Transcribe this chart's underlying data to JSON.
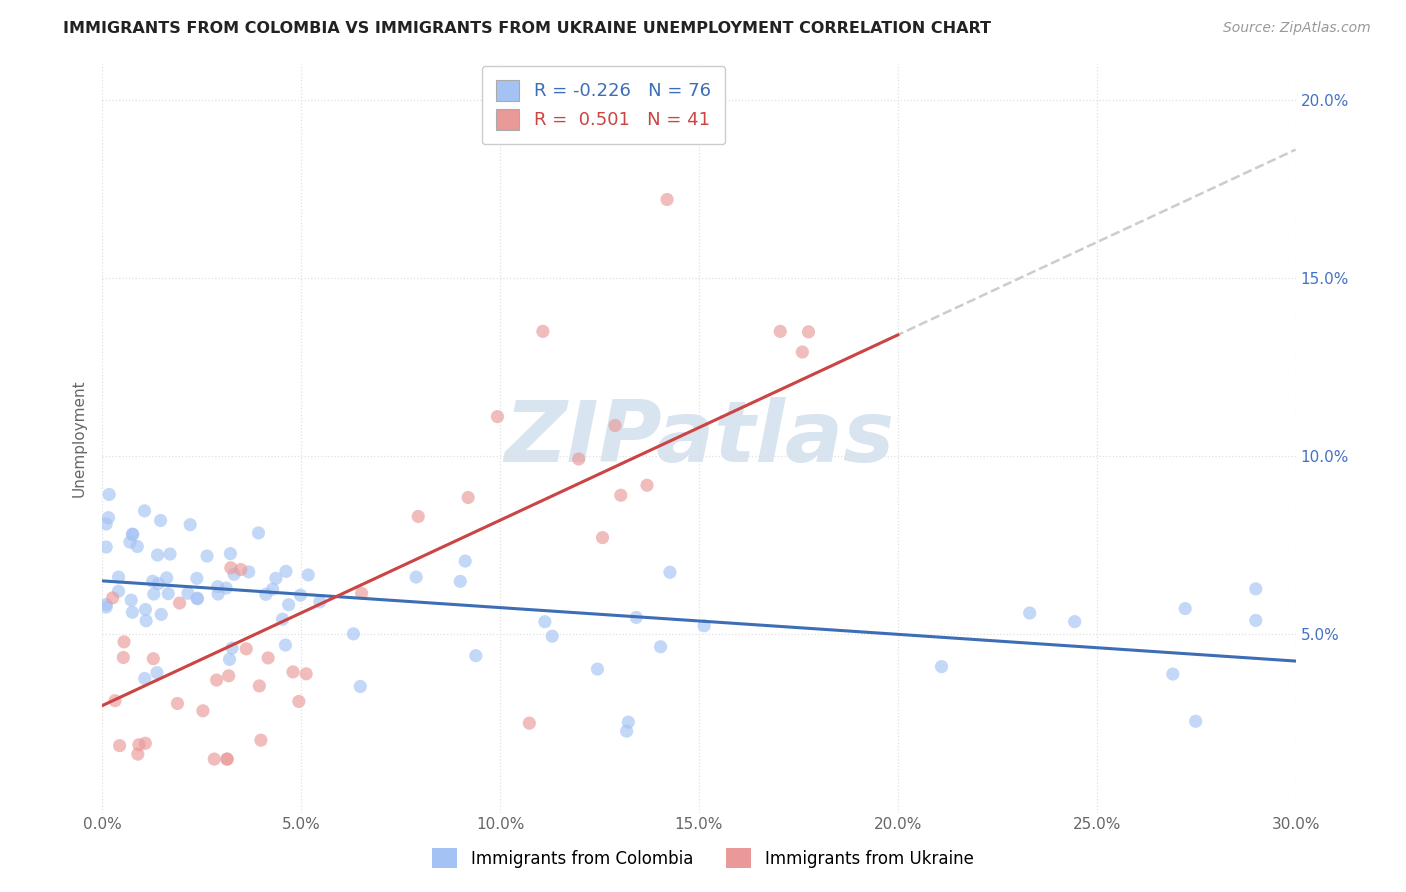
{
  "title": "IMMIGRANTS FROM COLOMBIA VS IMMIGRANTS FROM UKRAINE UNEMPLOYMENT CORRELATION CHART",
  "source": "Source: ZipAtlas.com",
  "watermark": "ZIPatlas",
  "ylabel": "Unemployment",
  "xlim": [
    0.0,
    0.3
  ],
  "ylim": [
    0.0,
    0.21
  ],
  "xticks": [
    0.0,
    0.05,
    0.1,
    0.15,
    0.2,
    0.25,
    0.3
  ],
  "xtick_labels": [
    "0.0%",
    "5.0%",
    "10.0%",
    "15.0%",
    "20.0%",
    "25.0%",
    "30.0%"
  ],
  "yticks": [
    0.0,
    0.05,
    0.1,
    0.15,
    0.2
  ],
  "colombia_color": "#a4c2f4",
  "ukraine_color": "#ea9999",
  "colombia_R": -0.226,
  "colombia_N": 76,
  "ukraine_R": 0.501,
  "ukraine_N": 41,
  "colombia_label": "Immigrants from Colombia",
  "ukraine_label": "Immigrants from Ukraine",
  "colombia_line_color": "#3d6eb5",
  "ukraine_line_color": "#cc4444",
  "dashed_line_color": "#cccccc",
  "background_color": "#ffffff",
  "grid_color": "#e0e0e0",
  "title_color": "#222222",
  "source_color": "#999999",
  "axis_label_color": "#666666",
  "right_tick_color": "#4472c4",
  "colombia_intercept": 0.065,
  "colombia_slope": -0.075,
  "ukraine_intercept": 0.03,
  "ukraine_slope": 0.52
}
